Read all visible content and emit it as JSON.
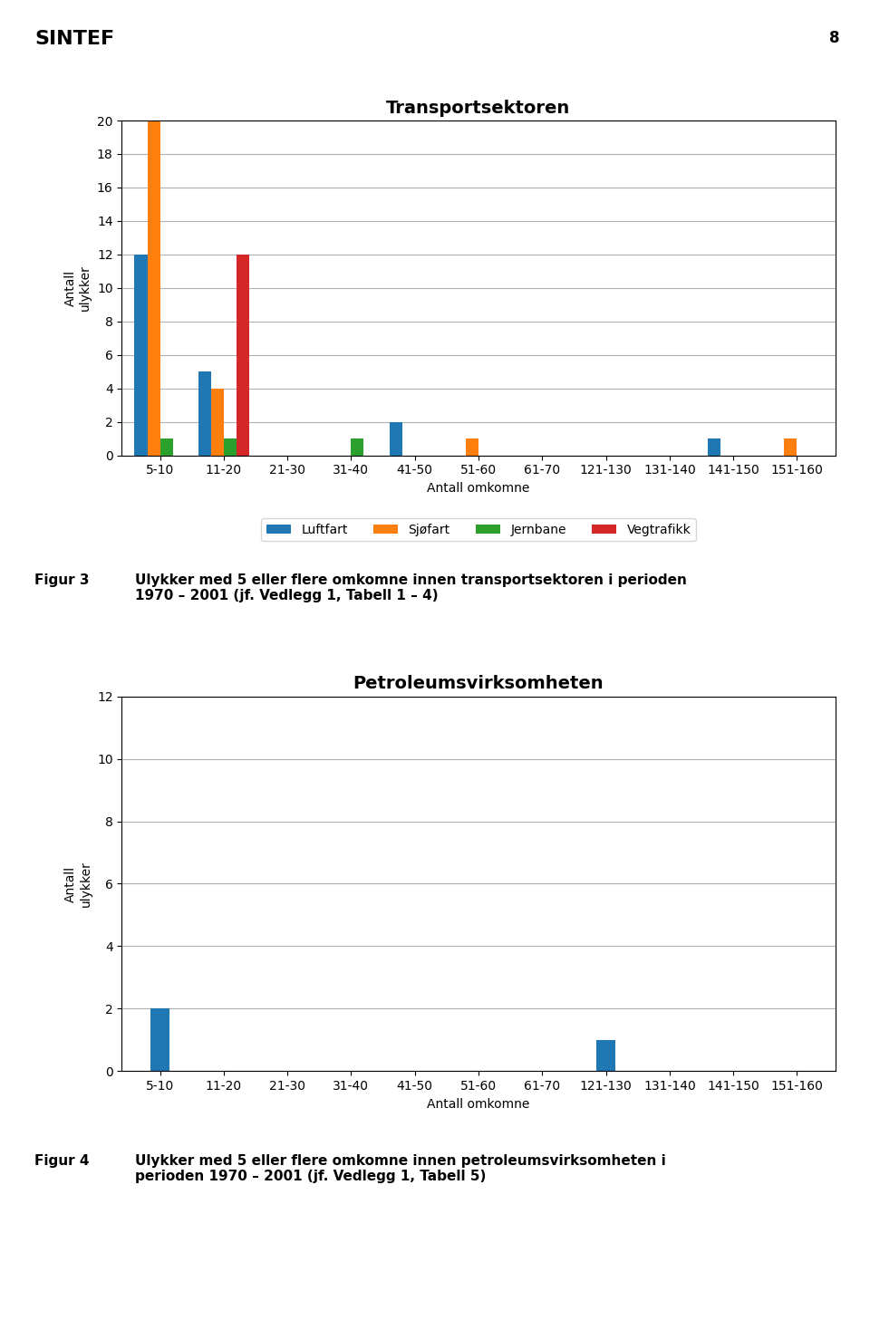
{
  "chart_data": [
    {
      "type": "bar",
      "title": "Transportsektoren",
      "xlabel": "Antall omkomne",
      "ylabel": "Antall\nulykker",
      "categories": [
        "5-10",
        "11-20",
        "21-30",
        "31-40",
        "41-50",
        "51-60",
        "61-70",
        "121-130",
        "131-140",
        "141-150",
        "151-160"
      ],
      "series": [
        {
          "name": "Luftfart",
          "values": [
            12,
            5,
            0,
            0,
            2,
            0,
            0,
            0,
            0,
            1,
            0
          ]
        },
        {
          "name": "Sjøfart",
          "values": [
            20,
            4,
            0,
            0,
            0,
            1,
            0,
            0,
            0,
            0,
            1
          ]
        },
        {
          "name": "Jernbane",
          "values": [
            1,
            1,
            0,
            1,
            0,
            0,
            0,
            0,
            0,
            0,
            0
          ]
        },
        {
          "name": "Vegtrafikk",
          "values": [
            0,
            12,
            0,
            0,
            0,
            0,
            0,
            0,
            0,
            0,
            0
          ]
        }
      ],
      "ylim": [
        0,
        20
      ],
      "yticks": [
        0,
        2,
        4,
        6,
        8,
        10,
        12,
        14,
        16,
        18,
        20
      ],
      "grid": true,
      "legend": "upper center",
      "annotations": [
        "SINTEF",
        "8",
        "Figur 3",
        "Ulykker med 5 eller flere omkomne innen transportsektoren i perioden\n1970 – 2001 (jf. Vedlegg 1, Tabell 1 – 4)"
      ]
    },
    {
      "type": "bar",
      "title": "Petroleumsvirksomheten",
      "xlabel": "Antall omkomne",
      "ylabel": "Antall\nulykker",
      "categories": [
        "5-10",
        "11-20",
        "21-30",
        "31-40",
        "41-50",
        "51-60",
        "61-70",
        "121-130",
        "131-140",
        "141-150",
        "151-160"
      ],
      "values": [
        2,
        0,
        0,
        0,
        0,
        0,
        0,
        1,
        0,
        0,
        0
      ],
      "ylim": [
        0,
        12
      ],
      "yticks": [
        0,
        2,
        4,
        6,
        8,
        10,
        12
      ],
      "grid": true,
      "annotations": [
        "Figur 4",
        "Ulykker med 5 eller flere omkomne innen petroleumsvirksomheten i\nperioden 1970 – 2001 (jf. Vedlegg 1, Tabell 5)"
      ]
    }
  ]
}
